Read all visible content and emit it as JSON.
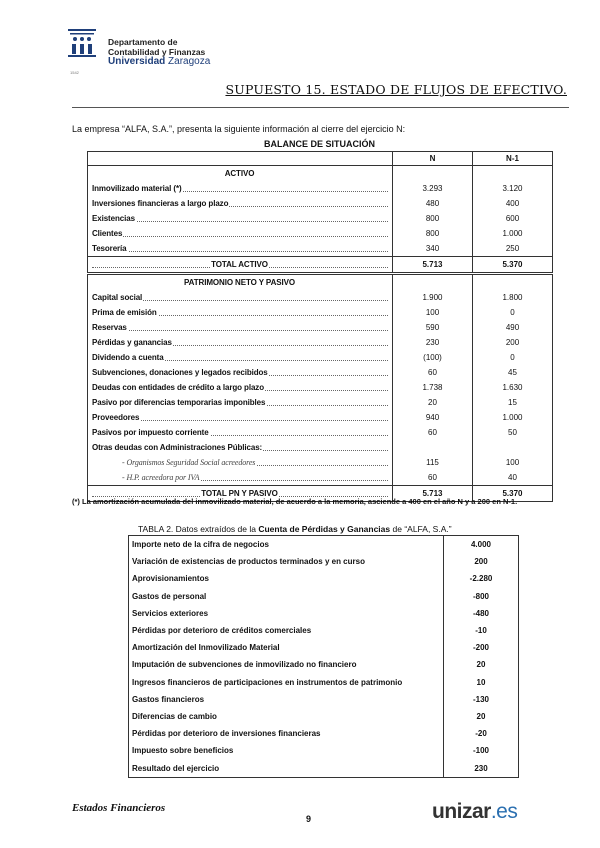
{
  "header": {
    "dept_line1": "Departamento de",
    "dept_line2": "Contabilidad y Finanzas",
    "uni_bold": "Universidad",
    "uni_rest": "Zaragoza",
    "logo_year": "1542"
  },
  "title": "SUPUESTO 15. ESTADO DE FLUJOS DE EFECTIVO.",
  "intro": "La empresa “ALFA, S.A.”, presenta la siguiente información al cierre del ejercicio N:",
  "balance": {
    "title": "BALANCE DE SITUACIÓN",
    "col_n": "N",
    "col_n1": "N-1",
    "activo_header": "ACTIVO",
    "activo": [
      {
        "label": "Inmovilizado material (*)",
        "n": "3.293",
        "n1": "3.120"
      },
      {
        "label": "Inversiones financieras a largo plazo",
        "n": "480",
        "n1": "400"
      },
      {
        "label": "Existencias",
        "n": "800",
        "n1": "600"
      },
      {
        "label": "Clientes",
        "n": "800",
        "n1": "1.000"
      },
      {
        "label": "Tesorería",
        "n": "340",
        "n1": "250"
      }
    ],
    "total_activo": {
      "label": "TOTAL ACTIVO",
      "n": "5.713",
      "n1": "5.370"
    },
    "pasivo_header": "PATRIMONIO NETO Y PASIVO",
    "pasivo": [
      {
        "label": "Capital social",
        "n": "1.900",
        "n1": "1.800"
      },
      {
        "label": "Prima de emisión",
        "n": "100",
        "n1": "0"
      },
      {
        "label": "Reservas",
        "n": "590",
        "n1": "490"
      },
      {
        "label": "Pérdidas y ganancias",
        "n": "230",
        "n1": "200"
      },
      {
        "label": "Dividendo a cuenta",
        "n": "(100)",
        "n1": "0"
      },
      {
        "label": "Subvenciones, donaciones y legados recibidos",
        "n": "60",
        "n1": "45"
      },
      {
        "label": "Deudas con entidades de crédito a largo plazo",
        "n": "1.738",
        "n1": "1.630"
      },
      {
        "label": "Pasivo por diferencias temporarias imponibles",
        "n": "20",
        "n1": "15"
      },
      {
        "label": "Proveedores",
        "n": "940",
        "n1": "1.000"
      },
      {
        "label": "Pasivos por impuesto corriente",
        "n": "60",
        "n1": "50"
      },
      {
        "label": "Otras deudas con Administraciones Públicas:",
        "n": "",
        "n1": ""
      },
      {
        "label": "- Organismos Seguridad Social acreedores",
        "n": "115",
        "n1": "100"
      },
      {
        "label": "- H.P. acreedora por IVA",
        "n": "60",
        "n1": "40"
      }
    ],
    "total_pasivo": {
      "label": "TOTAL PN Y PASIVO",
      "n": "5.713",
      "n1": "5.370"
    },
    "footnote": "(*) La amortización acumulada del inmovilizado material, de acuerdo a la memoria, asciende a 400 en el año N y a 200 en N-1."
  },
  "table2": {
    "title_pre": "TABLA 2.  Datos extraídos de la ",
    "title_bold": "Cuenta de Pérdidas y Ganancias",
    "title_post": "  de “ALFA, S.A.”",
    "rows": [
      {
        "label": "Importe neto de la cifra de negocios",
        "value": "4.000"
      },
      {
        "label": "Variación de existencias de productos  terminados y en curso",
        "value": "200"
      },
      {
        "label": "Aprovisionamientos",
        "value": "-2.280"
      },
      {
        "label": "Gastos de personal",
        "value": "-800"
      },
      {
        "label": "Servicios exteriores",
        "value": "-480"
      },
      {
        "label": "Pérdidas por deterioro de créditos comerciales",
        "value": "-10"
      },
      {
        "label": "Amortización del Inmovilizado Material",
        "value": "-200"
      },
      {
        "label": "Imputación de subvenciones de inmovilizado no financiero",
        "value": "20"
      },
      {
        "label": "Ingresos financieros de participaciones en instrumentos de patrimonio",
        "value": "10"
      },
      {
        "label": "Gastos financieros",
        "value": "-130"
      },
      {
        "label": "Diferencias de cambio",
        "value": "20"
      },
      {
        "label": "Pérdidas por deterioro de inversiones financieras",
        "value": "-20"
      },
      {
        "label": "Impuesto sobre beneficios",
        "value": "-100"
      },
      {
        "label": "Resultado del ejercicio",
        "value": "230"
      }
    ]
  },
  "footer": {
    "left": "Estados Financieros",
    "page": "9",
    "brand": "unizar",
    "brand_suffix": ".es"
  }
}
